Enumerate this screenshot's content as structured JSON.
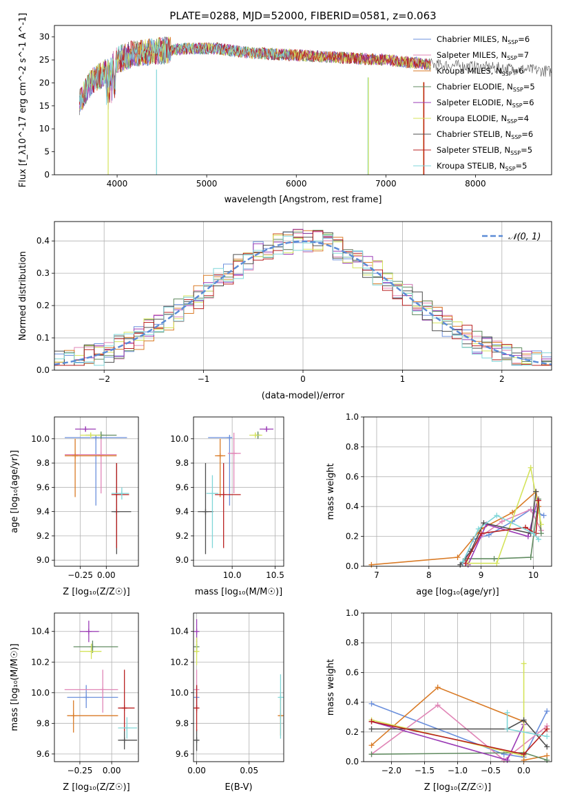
{
  "title": "PLATE=0288, MJD=52000, FIBERID=0581, z=0.063",
  "colors": [
    "#6a8fdc",
    "#e085b6",
    "#d97a25",
    "#5f8a5f",
    "#9a3ab5",
    "#d4e35a",
    "#4d4d4d",
    "#b81f1f",
    "#7fd6d8"
  ],
  "chart_data": [
    {
      "type": "line",
      "panel": "spectrum",
      "xlabel": "wavelength [Angstrom, rest frame]",
      "ylabel": "Flux [f_λ10^-17 erg cm^-2 s^-1 A^-1]",
      "xlim": [
        3300,
        8850
      ],
      "ylim": [
        0,
        32.5
      ],
      "xticks": [
        4000,
        5000,
        6000,
        7000,
        8000
      ],
      "yticks": [
        0,
        5,
        10,
        15,
        20,
        25,
        30
      ],
      "legend_placement": "top-right",
      "legend": [
        {
          "base": "Chabrier MILES, N",
          "sub": "SSP",
          "tail": "=6"
        },
        {
          "base": "Salpeter MILES, N",
          "sub": "SSP",
          "tail": "=7"
        },
        {
          "base": "Kroupa MILES, N",
          "sub": "SSP",
          "tail": "=6"
        },
        {
          "base": "Chabrier ELODIE, N",
          "sub": "SSP",
          "tail": "=5"
        },
        {
          "base": "Salpeter ELODIE, N",
          "sub": "SSP",
          "tail": "=6"
        },
        {
          "base": "Kroupa ELODIE, N",
          "sub": "SSP",
          "tail": "=4"
        },
        {
          "base": "Chabrier STELIB, N",
          "sub": "SSP",
          "tail": "=6"
        },
        {
          "base": "Salpeter STELIB, N",
          "sub": "SSP",
          "tail": "=5"
        },
        {
          "base": "Kroupa STELIB, N",
          "sub": "SSP",
          "tail": "=5"
        }
      ],
      "continuum": {
        "x": [
          3580,
          3700,
          3850,
          4000,
          4200,
          4500,
          4800,
          5100,
          5500,
          6000,
          6500,
          7000,
          7500,
          8000,
          8500,
          8850
        ],
        "y": [
          16,
          20,
          22,
          25,
          26.5,
          27,
          27.5,
          27.5,
          26.5,
          26,
          25.5,
          25,
          24,
          23.5,
          23,
          22.5
        ]
      },
      "dips": [
        {
          "series": 5,
          "x": 3900,
          "y": 0
        },
        {
          "series": 8,
          "x": 4440,
          "y": 0
        },
        {
          "series": 8,
          "x": 6800,
          "y": 0
        },
        {
          "series": 5,
          "x": 6805,
          "y": 0
        },
        {
          "series": 2,
          "x": 7420,
          "y": 0
        },
        {
          "series": 7,
          "x": 7425,
          "y": 0
        }
      ]
    },
    {
      "type": "histogram",
      "panel": "residuals",
      "xlabel": "(data-model)/error",
      "ylabel": "Normed distribution",
      "xlim": [
        -2.5,
        2.5
      ],
      "ylim": [
        0,
        0.46
      ],
      "xticks": [
        -2,
        -1,
        0,
        1,
        2
      ],
      "yticks": [
        0.0,
        0.1,
        0.2,
        0.3,
        0.4
      ],
      "bin_width": 0.1,
      "reference": {
        "label": "𝒩(0, 1)",
        "mean": 0,
        "sigma": 1,
        "color": "#5b8bd6"
      },
      "legend_placement": "top-right"
    },
    {
      "type": "scatter",
      "panel": "age-vs-Z",
      "xlabel": "Z [log₁₀(Z/Z☉)]",
      "ylabel": "age  [log₁₀(age/yr)]",
      "xlim": [
        -0.5,
        0.31
      ],
      "ylim": [
        8.95,
        10.18
      ],
      "xticks": [
        -0.25,
        0.0
      ],
      "yticks": [
        9.0,
        9.2,
        9.4,
        9.6,
        9.8,
        10.0
      ],
      "points": [
        {
          "s": 0,
          "x": -0.1,
          "xe": [
            -0.4,
            0.2
          ],
          "y": 10.01,
          "ye": [
            9.45,
            10.02
          ]
        },
        {
          "s": 1,
          "x": -0.05,
          "xe": [
            -0.4,
            0.1
          ],
          "y": 9.87,
          "ye": [
            9.55,
            10.0
          ]
        },
        {
          "s": 2,
          "x": -0.3,
          "xe": [
            -0.4,
            0.1
          ],
          "y": 9.86,
          "ye": [
            9.52,
            10.0
          ]
        },
        {
          "s": 3,
          "x": -0.05,
          "xe": [
            -0.2,
            0.1
          ],
          "y": 10.03,
          "ye": [
            10.0,
            10.06
          ]
        },
        {
          "s": 4,
          "x": -0.2,
          "xe": [
            -0.3,
            -0.1
          ],
          "y": 10.08,
          "ye": [
            10.06,
            10.1
          ]
        },
        {
          "s": 5,
          "x": -0.15,
          "xe": [
            -0.25,
            -0.05
          ],
          "y": 10.03,
          "ye": [
            10.01,
            10.05
          ]
        },
        {
          "s": 6,
          "x": 0.1,
          "xe": [
            0.05,
            0.24
          ],
          "y": 9.4,
          "ye": [
            9.05,
            9.8
          ]
        },
        {
          "s": 7,
          "x": 0.1,
          "xe": [
            0.05,
            0.22
          ],
          "y": 9.54,
          "ye": [
            9.1,
            9.8
          ]
        },
        {
          "s": 8,
          "x": 0.15,
          "xe": [
            0.05,
            0.22
          ],
          "y": 9.55,
          "ye": [
            9.5,
            9.6
          ]
        }
      ]
    },
    {
      "type": "scatter",
      "panel": "age-vs-mass",
      "xlabel": "mass [log₁₀(M/M☉)]",
      "ylabel": "",
      "xlim": [
        9.55,
        10.6
      ],
      "ylim": [
        8.95,
        10.18
      ],
      "xticks": [
        10.0,
        10.5
      ],
      "yticks": [
        9.0,
        9.2,
        9.4,
        9.6,
        9.8,
        10.0
      ],
      "points": [
        {
          "s": 0,
          "x": 9.97,
          "xe": [
            9.72,
            10.0
          ],
          "y": 10.01,
          "ye": [
            9.45,
            10.02
          ]
        },
        {
          "s": 1,
          "x": 10.02,
          "xe": [
            9.95,
            10.1
          ],
          "y": 9.88,
          "ye": [
            9.55,
            10.05
          ]
        },
        {
          "s": 2,
          "x": 9.86,
          "xe": [
            9.8,
            9.92
          ],
          "y": 9.86,
          "ye": [
            9.52,
            10.0
          ]
        },
        {
          "s": 3,
          "x": 10.3,
          "xe": [
            10.28,
            10.32
          ],
          "y": 10.03,
          "ye": [
            10.0,
            10.06
          ]
        },
        {
          "s": 4,
          "x": 10.4,
          "xe": [
            10.32,
            10.48
          ],
          "y": 10.08,
          "ye": [
            10.06,
            10.1
          ]
        },
        {
          "s": 5,
          "x": 10.27,
          "xe": [
            10.2,
            10.35
          ],
          "y": 10.03,
          "ye": [
            10.01,
            10.05
          ]
        },
        {
          "s": 6,
          "x": 9.69,
          "xe": [
            9.6,
            9.78
          ],
          "y": 9.4,
          "ye": [
            9.05,
            9.8
          ]
        },
        {
          "s": 7,
          "x": 9.9,
          "xe": [
            9.8,
            10.1
          ],
          "y": 9.54,
          "ye": [
            9.1,
            9.8
          ]
        },
        {
          "s": 8,
          "x": 9.77,
          "xe": [
            9.7,
            9.84
          ],
          "y": 9.55,
          "ye": [
            9.1,
            9.7
          ]
        }
      ]
    },
    {
      "type": "line",
      "panel": "mass-weight-vs-age",
      "xlabel": "age  [log₁₀(age/yr)]",
      "ylabel": "mass weight",
      "xlim": [
        6.75,
        10.35
      ],
      "ylim": [
        0,
        1.0
      ],
      "xticks": [
        7,
        8,
        9,
        10
      ],
      "yticks": [
        0.0,
        0.2,
        0.4,
        0.6,
        0.8,
        1.0
      ],
      "series": [
        {
          "s": 0,
          "points": [
            [
              8.65,
              0.02
            ],
            [
              8.85,
              0.18
            ],
            [
              9.15,
              0.21
            ],
            [
              9.6,
              0.3
            ],
            [
              9.95,
              0.38
            ],
            [
              10.2,
              0.34
            ]
          ]
        },
        {
          "s": 1,
          "points": [
            [
              8.7,
              0.04
            ],
            [
              9.0,
              0.2
            ],
            [
              9.4,
              0.3
            ],
            [
              9.95,
              0.38
            ],
            [
              10.15,
              0.24
            ]
          ]
        },
        {
          "s": 2,
          "points": [
            [
              6.9,
              0.01
            ],
            [
              8.55,
              0.06
            ],
            [
              9.0,
              0.25
            ],
            [
              9.6,
              0.36
            ],
            [
              10.05,
              0.5
            ],
            [
              10.1,
              0.4
            ]
          ]
        },
        {
          "s": 3,
          "points": [
            [
              8.7,
              0.05
            ],
            [
              9.25,
              0.05
            ],
            [
              9.95,
              0.06
            ],
            [
              10.1,
              0.45
            ],
            [
              10.15,
              0.22
            ]
          ]
        },
        {
          "s": 4,
          "points": [
            [
              8.75,
              0.01
            ],
            [
              9.1,
              0.28
            ],
            [
              9.9,
              0.2
            ],
            [
              10.08,
              0.44
            ]
          ]
        },
        {
          "s": 5,
          "points": [
            [
              8.75,
              0.02
            ],
            [
              9.3,
              0.02
            ],
            [
              9.95,
              0.66
            ],
            [
              10.15,
              0.28
            ]
          ]
        },
        {
          "s": 6,
          "points": [
            [
              8.6,
              0.01
            ],
            [
              8.8,
              0.1
            ],
            [
              9.05,
              0.29
            ],
            [
              9.95,
              0.22
            ],
            [
              10.05,
              0.5
            ]
          ]
        },
        {
          "s": 7,
          "points": [
            [
              8.7,
              0.02
            ],
            [
              9.0,
              0.22
            ],
            [
              9.85,
              0.26
            ],
            [
              10.05,
              0.22
            ],
            [
              10.1,
              0.44
            ]
          ]
        },
        {
          "s": 8,
          "points": [
            [
              8.65,
              0.03
            ],
            [
              8.95,
              0.25
            ],
            [
              9.3,
              0.34
            ],
            [
              10.0,
              0.22
            ],
            [
              10.1,
              0.18
            ]
          ]
        }
      ]
    },
    {
      "type": "scatter",
      "panel": "mass-vs-Z",
      "xlabel": "Z [log₁₀(Z/Z☉)]",
      "ylabel": "mass [log₁₀(M/M☉)]",
      "xlim": [
        -0.45,
        0.21
      ],
      "ylim": [
        9.55,
        10.52
      ],
      "xticks": [
        -0.25,
        0.0
      ],
      "yticks": [
        9.6,
        9.8,
        10.0,
        10.2,
        10.4
      ],
      "points": [
        {
          "s": 0,
          "x": -0.2,
          "xe": [
            -0.35,
            0.05
          ],
          "y": 9.97,
          "ye": [
            9.9,
            10.05
          ]
        },
        {
          "s": 1,
          "x": -0.07,
          "xe": [
            -0.37,
            0.05
          ],
          "y": 10.02,
          "ye": [
            9.87,
            10.15
          ]
        },
        {
          "s": 2,
          "x": -0.3,
          "xe": [
            -0.35,
            0.05
          ],
          "y": 9.85,
          "ye": [
            9.74,
            9.95
          ]
        },
        {
          "s": 3,
          "x": -0.15,
          "xe": [
            -0.3,
            0.05
          ],
          "y": 10.3,
          "ye": [
            10.26,
            10.34
          ]
        },
        {
          "s": 4,
          "x": -0.18,
          "xe": [
            -0.25,
            -0.1
          ],
          "y": 10.4,
          "ye": [
            10.33,
            10.47
          ]
        },
        {
          "s": 5,
          "x": -0.16,
          "xe": [
            -0.25,
            -0.08
          ],
          "y": 10.27,
          "ye": [
            10.22,
            10.32
          ]
        },
        {
          "s": 6,
          "x": 0.1,
          "xe": [
            0.05,
            0.2
          ],
          "y": 9.69,
          "ye": [
            9.63,
            9.75
          ]
        },
        {
          "s": 7,
          "x": 0.1,
          "xe": [
            0.05,
            0.18
          ],
          "y": 9.9,
          "ye": [
            9.75,
            10.15
          ]
        },
        {
          "s": 8,
          "x": 0.12,
          "xe": [
            0.05,
            0.2
          ],
          "y": 9.77,
          "ye": [
            9.7,
            9.84
          ]
        }
      ]
    },
    {
      "type": "scatter",
      "panel": "mass-vs-EBV",
      "xlabel": "E(B-V)",
      "ylabel": "",
      "xlim": [
        -0.003,
        0.083
      ],
      "ylim": [
        9.55,
        10.52
      ],
      "xticks": [
        0.0,
        0.05
      ],
      "yticks": [
        9.6,
        9.8,
        10.0,
        10.2,
        10.4
      ],
      "points": [
        {
          "s": 0,
          "x": 0.0,
          "y": 9.97,
          "ye": [
            9.9,
            10.05
          ]
        },
        {
          "s": 1,
          "x": 0.0,
          "y": 10.02,
          "ye": [
            9.87,
            10.15
          ]
        },
        {
          "s": 2,
          "x": 0.08,
          "y": 9.85,
          "ye": [
            9.72,
            9.98
          ]
        },
        {
          "s": 3,
          "x": 0.0,
          "y": 10.3,
          "ye": [
            10.26,
            10.34
          ]
        },
        {
          "s": 4,
          "x": 0.0,
          "y": 10.4,
          "ye": [
            10.33,
            10.48
          ]
        },
        {
          "s": 5,
          "x": 0.0,
          "y": 10.27,
          "ye": [
            10.18,
            10.36
          ]
        },
        {
          "s": 6,
          "x": 0.0,
          "y": 9.69,
          "ye": [
            9.62,
            9.76
          ]
        },
        {
          "s": 7,
          "x": 0.0,
          "y": 9.9,
          "ye": [
            9.75,
            10.05
          ]
        },
        {
          "s": 8,
          "x": 0.08,
          "y": 9.97,
          "ye": [
            9.7,
            10.12
          ]
        }
      ]
    },
    {
      "type": "line",
      "panel": "mass-weight-vs-Z",
      "xlabel": "Z [log₁₀(Z/Z☉)]",
      "ylabel": "mass weight",
      "xlim": [
        -2.42,
        0.42
      ],
      "ylim": [
        0,
        1.0
      ],
      "xticks": [
        -2.0,
        -1.5,
        -1.0,
        -0.5,
        0.0
      ],
      "yticks": [
        0.0,
        0.2,
        0.4,
        0.6,
        0.8,
        1.0
      ],
      "series": [
        {
          "s": 0,
          "points": [
            [
              -2.3,
              0.39
            ],
            [
              -0.3,
              0.05
            ],
            [
              0.0,
              0.03
            ],
            [
              0.35,
              0.34
            ]
          ]
        },
        {
          "s": 1,
          "points": [
            [
              -2.3,
              0.05
            ],
            [
              -1.3,
              0.38
            ],
            [
              -0.3,
              0.01
            ],
            [
              0.35,
              0.24
            ]
          ]
        },
        {
          "s": 2,
          "points": [
            [
              -2.3,
              0.11
            ],
            [
              -1.3,
              0.5
            ],
            [
              0.0,
              0.27
            ],
            [
              0.0,
              0.01
            ],
            [
              0.35,
              0.04
            ]
          ]
        },
        {
          "s": 3,
          "points": [
            [
              -2.3,
              0.05
            ],
            [
              0.0,
              0.06
            ],
            [
              0.35,
              0.01
            ]
          ]
        },
        {
          "s": 4,
          "points": [
            [
              -2.3,
              0.27
            ],
            [
              -0.25,
              0.01
            ],
            [
              0.0,
              0.25
            ]
          ]
        },
        {
          "s": 5,
          "points": [
            [
              -2.3,
              0.28
            ],
            [
              0.0,
              0.04
            ],
            [
              0.0,
              0.66
            ]
          ]
        },
        {
          "s": 6,
          "points": [
            [
              -2.3,
              0.22
            ],
            [
              -0.25,
              0.22
            ],
            [
              0.0,
              0.28
            ],
            [
              0.35,
              0.1
            ]
          ]
        },
        {
          "s": 7,
          "points": [
            [
              -2.3,
              0.27
            ],
            [
              0.0,
              0.05
            ],
            [
              0.35,
              0.22
            ]
          ]
        },
        {
          "s": 8,
          "points": [
            [
              -0.25,
              0.33
            ],
            [
              -0.25,
              0.22
            ],
            [
              0.35,
              0.17
            ]
          ]
        }
      ]
    }
  ]
}
